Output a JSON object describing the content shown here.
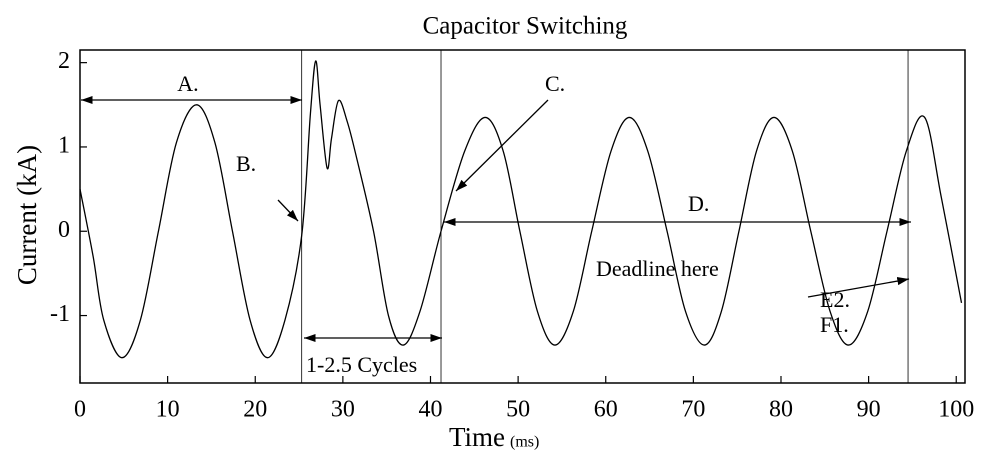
{
  "chart_data": {
    "type": "line",
    "title": "Capacitor Switching",
    "x_label": "Time",
    "x_unit": "(ms)",
    "y_label": "Current (kA)",
    "x": [
      0,
      1.5,
      2.7,
      4.8,
      6.9,
      8.95,
      11.0,
      13.3,
      15.4,
      17.4,
      19.4,
      21.4,
      23.4,
      25.3,
      26.3,
      26.9,
      27.4,
      28.2,
      28.7,
      29.5,
      30.5,
      31.5,
      33.5,
      35.2,
      36.9,
      38.8,
      41.2,
      43.9,
      46.25,
      48.3,
      50.2,
      52.2,
      54.2,
      56.3,
      58.4,
      60.6,
      62.7,
      64.8,
      67.0,
      69.1,
      71.25,
      73.2,
      75.2,
      77.2,
      79.2,
      81.3,
      83.4,
      85.6,
      87.7,
      89.9,
      92.1,
      94.3,
      96.4,
      98.3,
      100.6
    ],
    "values": [
      0.5,
      -0.3,
      -1.05,
      -1.5,
      -1.05,
      0,
      1.05,
      1.5,
      1.05,
      0,
      -1.05,
      -1.5,
      -1.05,
      -0.05,
      1.4,
      2.02,
      1.5,
      0.75,
      1.1,
      1.55,
      1.3,
      0.9,
      0,
      -1.0,
      -1.35,
      -0.95,
      0,
      0.95,
      1.35,
      0.95,
      0,
      -0.95,
      -1.35,
      -0.95,
      0,
      0.95,
      1.35,
      0.95,
      0,
      -0.95,
      -1.35,
      -0.95,
      0,
      0.95,
      1.35,
      0.95,
      0,
      -0.95,
      -1.35,
      -0.95,
      0,
      0.95,
      1.35,
      0.4,
      -0.85
    ],
    "color": "#000000",
    "xlim": [
      0,
      101
    ],
    "ylim": [
      -1.8,
      2.15
    ],
    "xticks": [
      0,
      10,
      20,
      30,
      40,
      50,
      60,
      70,
      80,
      90,
      100
    ],
    "yticks": [
      -1,
      0,
      1,
      2
    ],
    "vlines": [
      25.3,
      41.2,
      94.5
    ],
    "annotations": [
      "A.",
      "B.",
      "C.",
      "D.",
      "Deadline here",
      "E2.",
      "F1.",
      "1-2.5 Cycles"
    ]
  }
}
